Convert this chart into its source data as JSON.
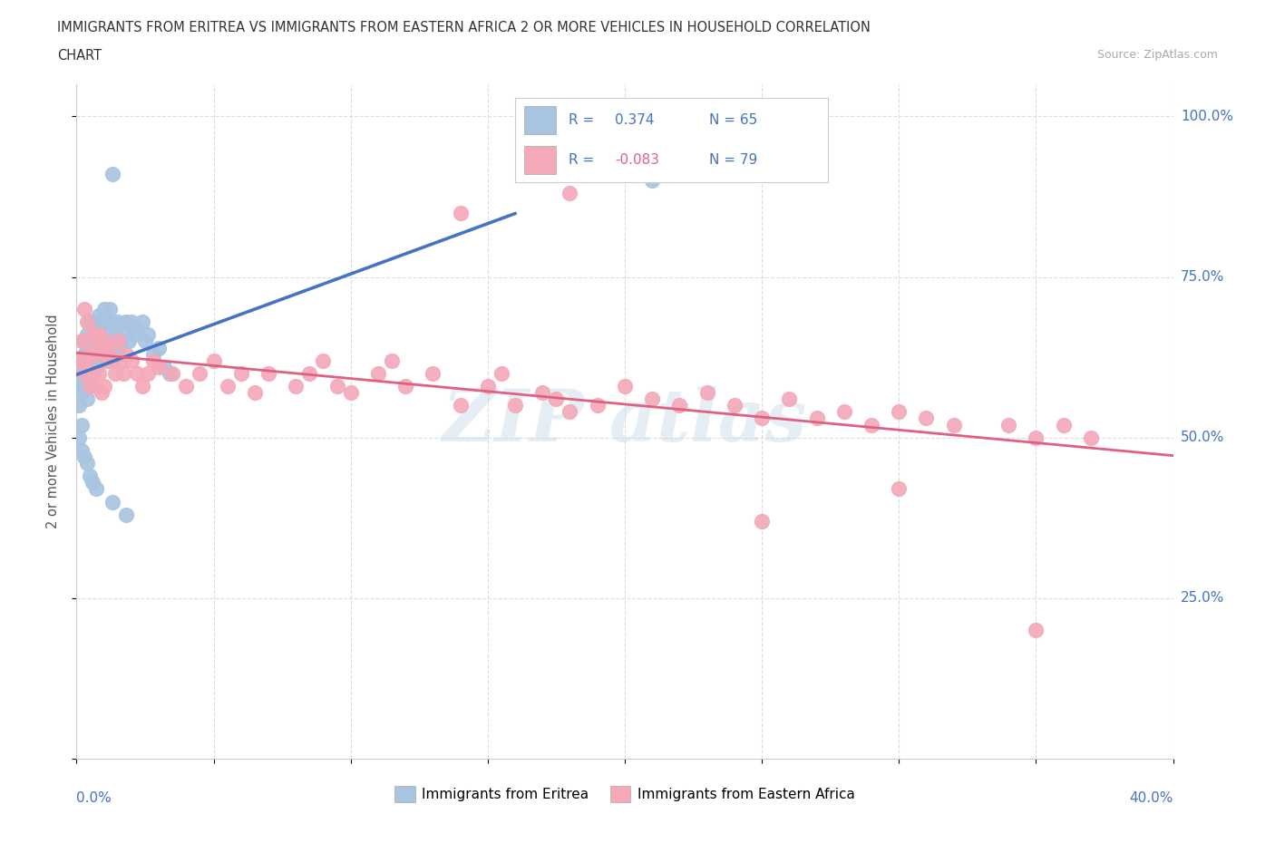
{
  "title_line1": "IMMIGRANTS FROM ERITREA VS IMMIGRANTS FROM EASTERN AFRICA 2 OR MORE VEHICLES IN HOUSEHOLD CORRELATION",
  "title_line2": "CHART",
  "source": "Source: ZipAtlas.com",
  "ylabel": "2 or more Vehicles in Household",
  "ytick_labels": [
    "",
    "25.0%",
    "50.0%",
    "75.0%",
    "100.0%"
  ],
  "xmin": 0.0,
  "xmax": 0.4,
  "ymin": 0.0,
  "ymax": 1.05,
  "R_eritrea": 0.374,
  "N_eritrea": 65,
  "R_eastern": -0.083,
  "N_eastern": 79,
  "color_eritrea": "#a8c4e0",
  "color_eastern": "#f4a8b8",
  "trendline_eritrea": "#4472c4",
  "trendline_eastern": "#e06080",
  "eritrea_x": [
    0.001,
    0.001,
    0.002,
    0.002,
    0.002,
    0.002,
    0.003,
    0.003,
    0.003,
    0.003,
    0.004,
    0.004,
    0.004,
    0.004,
    0.005,
    0.005,
    0.005,
    0.005,
    0.006,
    0.006,
    0.006,
    0.007,
    0.007,
    0.007,
    0.008,
    0.008,
    0.008,
    0.009,
    0.009,
    0.01,
    0.01,
    0.011,
    0.011,
    0.012,
    0.012,
    0.013,
    0.013,
    0.014,
    0.015,
    0.015,
    0.016,
    0.017,
    0.018,
    0.019,
    0.02,
    0.021,
    0.022,
    0.024,
    0.025,
    0.026,
    0.028,
    0.03,
    0.032,
    0.034,
    0.001,
    0.002,
    0.003,
    0.004,
    0.005,
    0.006,
    0.007,
    0.013,
    0.018,
    0.21,
    0.013
  ],
  "eritrea_y": [
    0.58,
    0.55,
    0.62,
    0.6,
    0.57,
    0.52,
    0.65,
    0.63,
    0.61,
    0.58,
    0.66,
    0.63,
    0.6,
    0.56,
    0.68,
    0.65,
    0.62,
    0.58,
    0.67,
    0.64,
    0.6,
    0.68,
    0.65,
    0.61,
    0.69,
    0.65,
    0.62,
    0.68,
    0.64,
    0.7,
    0.65,
    0.68,
    0.64,
    0.7,
    0.66,
    0.68,
    0.64,
    0.66,
    0.68,
    0.63,
    0.65,
    0.67,
    0.68,
    0.65,
    0.68,
    0.66,
    0.67,
    0.68,
    0.65,
    0.66,
    0.63,
    0.64,
    0.61,
    0.6,
    0.5,
    0.48,
    0.47,
    0.46,
    0.44,
    0.43,
    0.42,
    0.4,
    0.38,
    0.9,
    0.91
  ],
  "eastern_x": [
    0.001,
    0.002,
    0.003,
    0.003,
    0.004,
    0.004,
    0.005,
    0.005,
    0.006,
    0.006,
    0.007,
    0.007,
    0.008,
    0.008,
    0.009,
    0.009,
    0.01,
    0.01,
    0.011,
    0.012,
    0.013,
    0.014,
    0.015,
    0.016,
    0.017,
    0.018,
    0.02,
    0.022,
    0.024,
    0.026,
    0.028,
    0.03,
    0.035,
    0.04,
    0.045,
    0.05,
    0.055,
    0.06,
    0.065,
    0.07,
    0.08,
    0.085,
    0.09,
    0.095,
    0.1,
    0.11,
    0.115,
    0.12,
    0.13,
    0.14,
    0.15,
    0.155,
    0.16,
    0.17,
    0.175,
    0.18,
    0.19,
    0.2,
    0.21,
    0.22,
    0.23,
    0.24,
    0.25,
    0.26,
    0.27,
    0.28,
    0.29,
    0.3,
    0.31,
    0.32,
    0.34,
    0.35,
    0.36,
    0.37,
    0.3,
    0.25,
    0.18,
    0.14,
    0.35
  ],
  "eastern_y": [
    0.62,
    0.65,
    0.6,
    0.7,
    0.62,
    0.68,
    0.63,
    0.58,
    0.66,
    0.6,
    0.64,
    0.58,
    0.66,
    0.6,
    0.63,
    0.57,
    0.65,
    0.58,
    0.62,
    0.64,
    0.62,
    0.6,
    0.65,
    0.62,
    0.6,
    0.63,
    0.62,
    0.6,
    0.58,
    0.6,
    0.62,
    0.61,
    0.6,
    0.58,
    0.6,
    0.62,
    0.58,
    0.6,
    0.57,
    0.6,
    0.58,
    0.6,
    0.62,
    0.58,
    0.57,
    0.6,
    0.62,
    0.58,
    0.6,
    0.55,
    0.58,
    0.6,
    0.55,
    0.57,
    0.56,
    0.54,
    0.55,
    0.58,
    0.56,
    0.55,
    0.57,
    0.55,
    0.53,
    0.56,
    0.53,
    0.54,
    0.52,
    0.54,
    0.53,
    0.52,
    0.52,
    0.5,
    0.52,
    0.5,
    0.42,
    0.37,
    0.88,
    0.85,
    0.2
  ]
}
